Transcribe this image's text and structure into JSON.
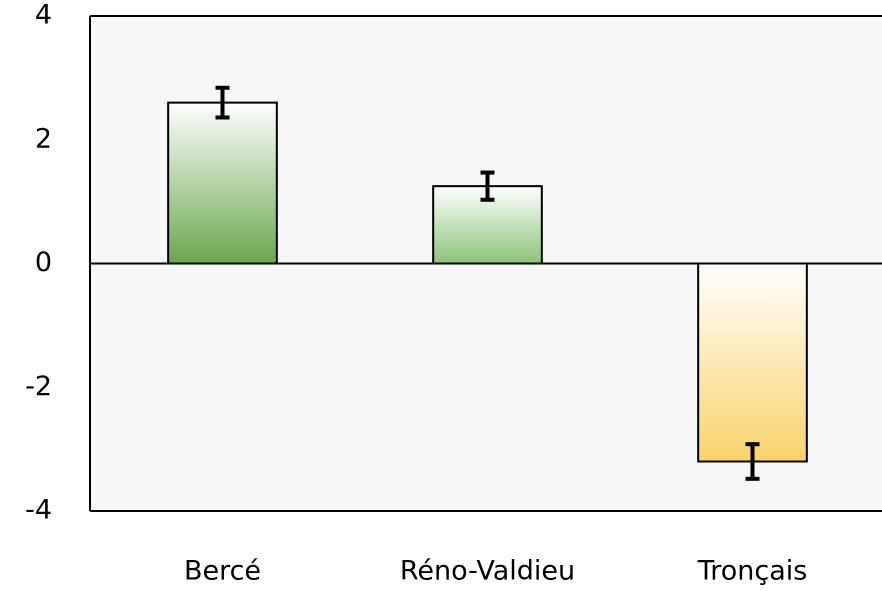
{
  "chart_data": {
    "type": "bar",
    "categories": [
      "Bercé",
      "Réno-Valdieu",
      "Tronçais"
    ],
    "values": [
      2.6,
      1.25,
      -3.2
    ],
    "errors": [
      0.24,
      0.22,
      0.28
    ],
    "colors": [
      "#6aa84f",
      "#8cc47a",
      "#f9d36b"
    ],
    "ylim": [
      -4,
      4
    ],
    "yticks": [
      -4,
      -2,
      0,
      2,
      4
    ],
    "grid": false
  }
}
